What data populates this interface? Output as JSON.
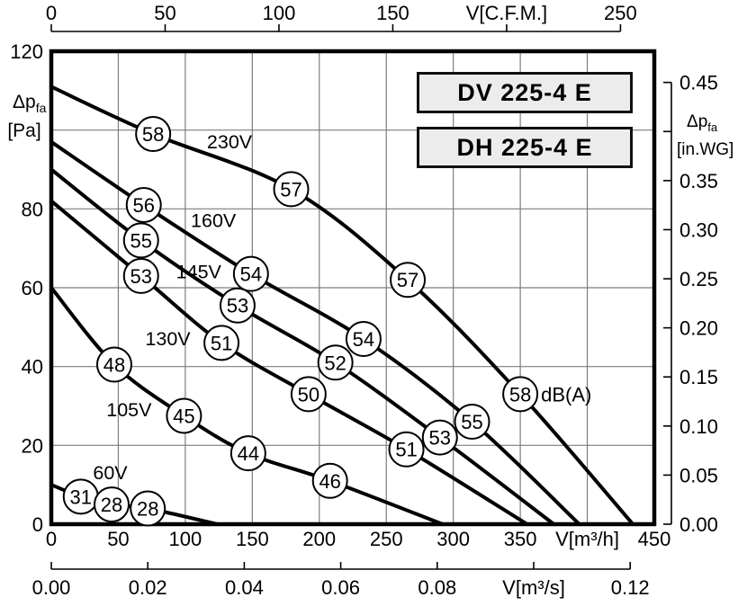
{
  "header": {
    "models": [
      "DV 225-4 E",
      "DH 225-4 E"
    ]
  },
  "chart_data": {
    "type": "line",
    "title": "Fan performance curves DV 225-4 E / DH 225-4 E",
    "grid": true,
    "axes": {
      "bottom_m3h": {
        "unit_label": "V[m³/h]",
        "range": [
          0,
          450
        ],
        "ticks": [
          {
            "v": 0,
            "l": "0"
          },
          {
            "v": 50,
            "l": "50"
          },
          {
            "v": 100,
            "l": "100"
          },
          {
            "v": 150,
            "l": "150"
          },
          {
            "v": 200,
            "l": "200"
          },
          {
            "v": 250,
            "l": "250"
          },
          {
            "v": 300,
            "l": "300"
          },
          {
            "v": 350,
            "l": "350"
          },
          {
            "v": 400,
            "l": "V[m³/h]"
          },
          {
            "v": 450,
            "l": "450"
          }
        ]
      },
      "top_cfm": {
        "unit_label": "V[C.F.M.]",
        "range": [
          0,
          250
        ],
        "ticks": [
          {
            "v": 0,
            "l": "0"
          },
          {
            "v": 50,
            "l": "50"
          },
          {
            "v": 100,
            "l": "100"
          },
          {
            "v": 150,
            "l": "150"
          },
          {
            "v": 200,
            "l": "V[C.F.M.]"
          },
          {
            "v": 250,
            "l": "250"
          }
        ]
      },
      "bottom_m3s": {
        "unit_label": "V[m³/s]",
        "range": [
          0,
          0.12
        ],
        "ticks": [
          {
            "v": 0.0,
            "l": "0.00"
          },
          {
            "v": 0.02,
            "l": "0.02"
          },
          {
            "v": 0.04,
            "l": "0.04"
          },
          {
            "v": 0.06,
            "l": "0.06"
          },
          {
            "v": 0.08,
            "l": "0.08"
          },
          {
            "v": 0.1,
            "l": "V[m³/s]"
          },
          {
            "v": 0.12,
            "l": "0.12"
          }
        ]
      },
      "left_pa": {
        "quantity": {
          "main": "Δp",
          "sub": "fa",
          "unit": "[Pa]"
        },
        "range": [
          0,
          120
        ],
        "ticks": [
          {
            "v": 120,
            "l": "120"
          },
          {
            "v": 100,
            "l": ""
          },
          {
            "v": 80,
            "l": "80"
          },
          {
            "v": 60,
            "l": "60"
          },
          {
            "v": 40,
            "l": "40"
          },
          {
            "v": 20,
            "l": "20"
          },
          {
            "v": 0,
            "l": "0"
          }
        ]
      },
      "right_inwg": {
        "quantity": {
          "main": "Δp",
          "sub": "fa",
          "unit": "[in.WG]"
        },
        "range": [
          0,
          0.45
        ],
        "ticks": [
          {
            "v": 0.45,
            "l": "0.45"
          },
          {
            "v": 0.4,
            "l": ""
          },
          {
            "v": 0.35,
            "l": "0.35"
          },
          {
            "v": 0.3,
            "l": "0.30"
          },
          {
            "v": 0.25,
            "l": "0.25"
          },
          {
            "v": 0.2,
            "l": "0.20"
          },
          {
            "v": 0.15,
            "l": "0.15"
          },
          {
            "v": 0.1,
            "l": "0.10"
          },
          {
            "v": 0.05,
            "l": "0.05"
          },
          {
            "v": 0.0,
            "l": "0.00"
          }
        ]
      }
    },
    "series": [
      {
        "name": "230V",
        "label_v": 133,
        "label_pa": 97,
        "points": [
          [
            0,
            111
          ],
          [
            76,
            99
          ],
          [
            179,
            85
          ],
          [
            266,
            62
          ],
          [
            350,
            33
          ],
          [
            434,
            0
          ]
        ],
        "markers": [
          {
            "db": "58",
            "v": 76,
            "pa": 99
          },
          {
            "db": "57",
            "v": 179,
            "pa": 85
          },
          {
            "db": "57",
            "v": 266,
            "pa": 62
          },
          {
            "db": "58",
            "v": 350,
            "pa": 33,
            "suffix": "dB(A)"
          }
        ]
      },
      {
        "name": "160V",
        "label_v": 121,
        "label_pa": 77,
        "points": [
          [
            0,
            97
          ],
          [
            69,
            81
          ],
          [
            149,
            63.5
          ],
          [
            233,
            47
          ],
          [
            314,
            26
          ],
          [
            394,
            0
          ]
        ],
        "markers": [
          {
            "db": "56",
            "v": 69,
            "pa": 81
          },
          {
            "db": "54",
            "v": 149,
            "pa": 63.5
          },
          {
            "db": "54",
            "v": 233,
            "pa": 47
          },
          {
            "db": "55",
            "v": 314,
            "pa": 26
          }
        ]
      },
      {
        "name": "145V",
        "label_v": 110,
        "label_pa": 64,
        "points": [
          [
            0,
            90
          ],
          [
            67,
            72
          ],
          [
            139,
            55.5
          ],
          [
            212,
            41
          ],
          [
            290,
            22
          ],
          [
            375,
            0
          ]
        ],
        "markers": [
          {
            "db": "55",
            "v": 67,
            "pa": 72
          },
          {
            "db": "53",
            "v": 139,
            "pa": 55.5
          },
          {
            "db": "52",
            "v": 212,
            "pa": 41
          },
          {
            "db": "53",
            "v": 290,
            "pa": 22
          }
        ]
      },
      {
        "name": "130V",
        "label_v": 87,
        "label_pa": 47,
        "points": [
          [
            0,
            82
          ],
          [
            67,
            63
          ],
          [
            127,
            46
          ],
          [
            192,
            33
          ],
          [
            265,
            19
          ],
          [
            355,
            0
          ]
        ],
        "markers": [
          {
            "db": "53",
            "v": 67,
            "pa": 63
          },
          {
            "db": "51",
            "v": 127,
            "pa": 46
          },
          {
            "db": "50",
            "v": 192,
            "pa": 33
          },
          {
            "db": "51",
            "v": 265,
            "pa": 19
          }
        ]
      },
      {
        "name": "105V",
        "label_v": 58,
        "label_pa": 29,
        "points": [
          [
            0,
            60
          ],
          [
            47,
            40.5
          ],
          [
            99,
            27.5
          ],
          [
            147,
            18
          ],
          [
            208,
            11
          ],
          [
            292,
            0
          ]
        ],
        "markers": [
          {
            "db": "48",
            "v": 47,
            "pa": 40.5
          },
          {
            "db": "45",
            "v": 99,
            "pa": 27.5
          },
          {
            "db": "44",
            "v": 147,
            "pa": 18
          },
          {
            "db": "46",
            "v": 208,
            "pa": 11
          }
        ]
      },
      {
        "name": "60V",
        "label_v": 44,
        "label_pa": 13,
        "points": [
          [
            0,
            10
          ],
          [
            22,
            7
          ],
          [
            45,
            5
          ],
          [
            72,
            4
          ],
          [
            124,
            0
          ]
        ],
        "markers": [
          {
            "db": "31",
            "v": 22,
            "pa": 7
          },
          {
            "db": "28",
            "v": 45,
            "pa": 5
          },
          {
            "db": "28",
            "v": 72,
            "pa": 4
          }
        ]
      }
    ],
    "colors": {
      "curve": "#000000",
      "grid": "#7d7d7d",
      "axis": "#000000",
      "marker_fill": "#ffffff",
      "legend_fill": "#ececec"
    }
  }
}
